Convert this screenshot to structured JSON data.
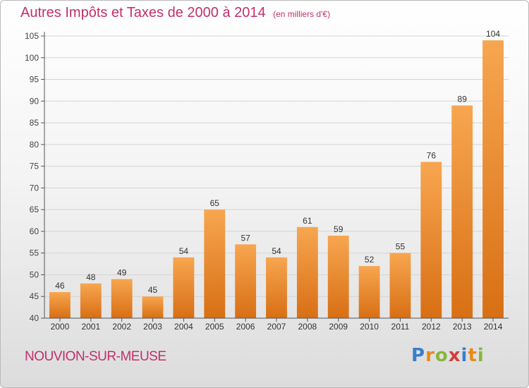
{
  "header": {
    "title": "Autres Impôts et Taxes de 2000 à 2014",
    "unit": "(en milliers d'€)"
  },
  "footer": {
    "commune": "NOUVION-SUR-MEUSE",
    "logo_letters": [
      "P",
      "r",
      "o",
      "x",
      "i",
      "t",
      "i"
    ],
    "logo_colors": [
      "#3a7ec9",
      "#e88b1a",
      "#86b83a",
      "#d43c3c",
      "#3a7ec9",
      "#e88b1a",
      "#86b83a"
    ]
  },
  "chart_data": {
    "type": "bar",
    "title": "Autres Impôts et Taxes de 2000 à 2014",
    "xlabel": "",
    "ylabel": "",
    "categories": [
      "2000",
      "2001",
      "2002",
      "2003",
      "2004",
      "2005",
      "2006",
      "2007",
      "2008",
      "2009",
      "2010",
      "2011",
      "2012",
      "2013",
      "2014"
    ],
    "values": [
      46,
      48,
      49,
      45,
      54,
      65,
      57,
      54,
      61,
      59,
      52,
      55,
      76,
      89,
      104
    ],
    "ylim": [
      40,
      105
    ],
    "yticks": [
      40,
      45,
      50,
      55,
      60,
      65,
      70,
      75,
      80,
      85,
      90,
      95,
      100,
      105
    ],
    "grid": true,
    "bar_color_top": "#f7a650",
    "bar_color_bottom": "#d86f14"
  }
}
